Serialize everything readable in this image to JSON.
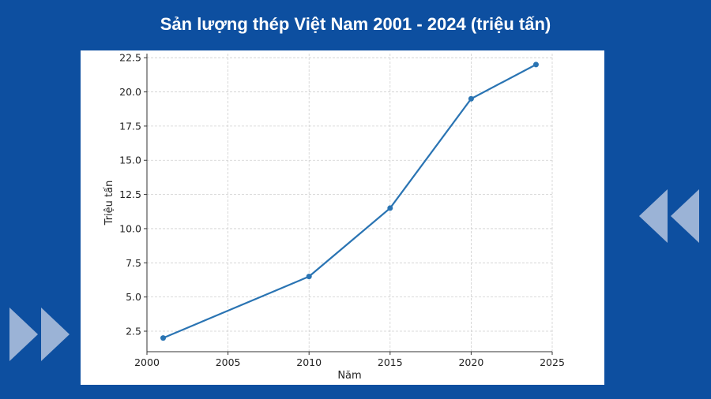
{
  "title": "Sản lượng thép Việt Nam 2001 - 2024 (triệu tấn)",
  "colors": {
    "background": "#0d4fa0",
    "panel": "#ffffff",
    "line": "#2a74b3",
    "decor": "#9bb3d6"
  },
  "decor_icons": [
    "double-chevron-left-icon",
    "double-chevron-right-icon"
  ],
  "chart_data": {
    "type": "line",
    "title": "Sản lượng thép Việt Nam 2001 - 2024 (triệu tấn)",
    "xlabel": "Năm",
    "ylabel": "Triệu tấn",
    "x": [
      2001,
      2010,
      2015,
      2020,
      2024
    ],
    "series": [
      {
        "values": [
          2.0,
          6.5,
          11.5,
          19.5,
          22.0
        ]
      }
    ],
    "xlim": [
      2000,
      2025
    ],
    "ylim": [
      1.0,
      22.8
    ],
    "xticks": [
      "2000",
      "2005",
      "2010",
      "2015",
      "2020",
      "2025"
    ],
    "yticks": [
      "2.5",
      "5.0",
      "7.5",
      "10.0",
      "12.5",
      "15.0",
      "17.5",
      "20.0",
      "22.5"
    ],
    "grid": true,
    "markers": true
  }
}
